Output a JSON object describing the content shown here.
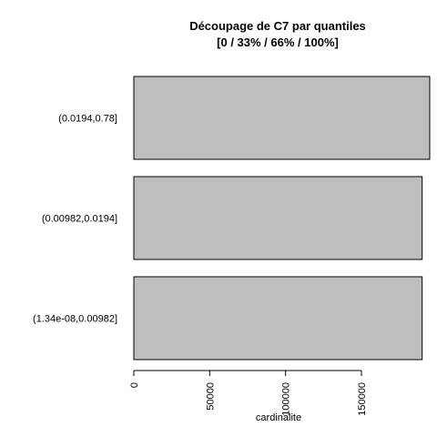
{
  "chart_data": {
    "type": "bar",
    "orientation": "horizontal",
    "title_line1": "Découpage de C7 par quantiles",
    "title_line2": "[0 / 33% / 66% / 100%]",
    "xlabel": "cardinalite",
    "categories": [
      "(1.34e-08,0.00982]",
      "(0.00982,0.0194]",
      "(0.0194,0.78]"
    ],
    "values": [
      190000,
      190000,
      195000
    ],
    "xticks": [
      0,
      50000,
      100000,
      150000
    ],
    "xlim": [
      0,
      195000
    ],
    "bar_color": "#bebebe",
    "edge_color": "#000000"
  }
}
